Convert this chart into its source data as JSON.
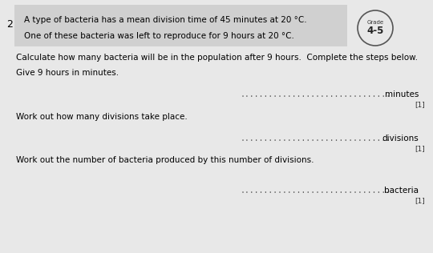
{
  "bg_color": "#e8e8e8",
  "header_bg": "#d0d0d0",
  "question_number": "2",
  "header_line1": "A type of bacteria has a mean division time of 45 minutes at 20 °C.",
  "header_line2": "One of these bacteria was left to reproduce for 9 hours at 20 °C.",
  "grade_label": "Grade",
  "grade_value": "4-5",
  "instruction": "Calculate how many bacteria will be in the population after 9 hours.  Complete the steps below.",
  "step1_prompt": "Give 9 hours in minutes.",
  "step1_unit": "minutes",
  "step1_mark": "[1]",
  "step2_prompt": "Work out how many divisions take place.",
  "step2_unit": "divisions",
  "step2_mark": "[1]",
  "step3_prompt": "Work out the number of bacteria produced by this number of divisions.",
  "step3_unit": "bacteria",
  "step3_mark": "[1]",
  "dots": "................................",
  "font_size_body": 7.5,
  "font_size_mark": 6.5,
  "font_size_qnum": 9.0,
  "font_size_grade_label": 5.0,
  "font_size_grade_value": 8.5
}
